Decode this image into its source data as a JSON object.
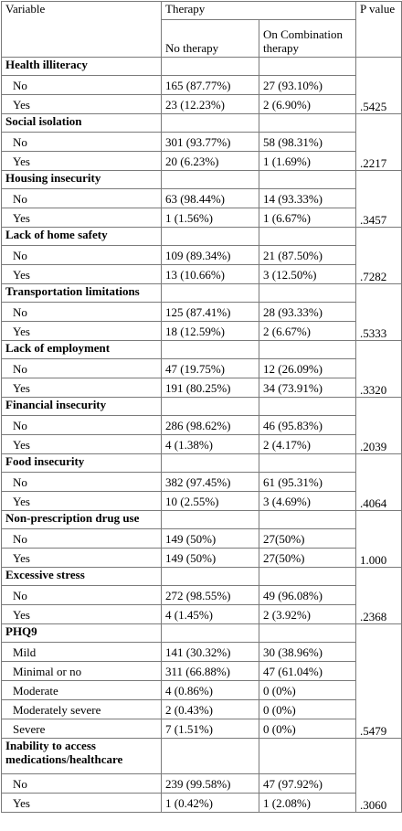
{
  "header": {
    "variable": "Variable",
    "therapy": "Therapy",
    "no_therapy": "No therapy",
    "combination": "On Combination therapy",
    "pvalue": "P value"
  },
  "sections": [
    {
      "title": "Health illiteracy",
      "rows": [
        {
          "level": "No",
          "no": "165 (87.77%)",
          "combo": "27 (93.10%)"
        },
        {
          "level": "Yes",
          "no": "23 (12.23%)",
          "combo": "2 (6.90%)"
        }
      ],
      "p": ".5425"
    },
    {
      "title": "Social isolation",
      "rows": [
        {
          "level": "No",
          "no": "301 (93.77%)",
          "combo": "58 (98.31%)"
        },
        {
          "level": "Yes",
          "no": "20 (6.23%)",
          "combo": "1 (1.69%)"
        }
      ],
      "p": ".2217"
    },
    {
      "title": "Housing insecurity",
      "rows": [
        {
          "level": "No",
          "no": "63 (98.44%)",
          "combo": "14 (93.33%)"
        },
        {
          "level": "Yes",
          "no": "1 (1.56%)",
          "combo": "1 (6.67%)"
        }
      ],
      "p": ".3457"
    },
    {
      "title": "Lack of home safety",
      "rows": [
        {
          "level": "No",
          "no": "109 (89.34%)",
          "combo": "21 (87.50%)"
        },
        {
          "level": "Yes",
          "no": "13 (10.66%)",
          "combo": "3 (12.50%)"
        }
      ],
      "p": ".7282"
    },
    {
      "title": "Transportation limitations",
      "rows": [
        {
          "level": "No",
          "no": "125 (87.41%)",
          "combo": "28 (93.33%)"
        },
        {
          "level": "Yes",
          "no": "18 (12.59%)",
          "combo": "2 (6.67%)"
        }
      ],
      "p": ".5333"
    },
    {
      "title": "Lack of employment",
      "rows": [
        {
          "level": "No",
          "no": "47 (19.75%)",
          "combo": "12 (26.09%)"
        },
        {
          "level": "Yes",
          "no": "191 (80.25%)",
          "combo": "34 (73.91%)"
        }
      ],
      "p": ".3320"
    },
    {
      "title": "Financial insecurity",
      "rows": [
        {
          "level": "No",
          "no": "286 (98.62%)",
          "combo": "46 (95.83%)"
        },
        {
          "level": "Yes",
          "no": "4 (1.38%)",
          "combo": "2 (4.17%)"
        }
      ],
      "p": ".2039"
    },
    {
      "title": "Food insecurity",
      "rows": [
        {
          "level": "No",
          "no": "382 (97.45%)",
          "combo": "61 (95.31%)"
        },
        {
          "level": "Yes",
          "no": "10 (2.55%)",
          "combo": "3 (4.69%)"
        }
      ],
      "p": ".4064"
    },
    {
      "title": "Non-prescription drug use",
      "rows": [
        {
          "level": "No",
          "no": "149 (50%)",
          "combo": "27(50%)"
        },
        {
          "level": "Yes",
          "no": "149 (50%)",
          "combo": "27(50%)"
        }
      ],
      "p": "1.000"
    },
    {
      "title": "Excessive stress",
      "rows": [
        {
          "level": "No",
          "no": "272 (98.55%)",
          "combo": "49 (96.08%)"
        },
        {
          "level": "Yes",
          "no": "4 (1.45%)",
          "combo": "2 (3.92%)"
        }
      ],
      "p": ".2368"
    },
    {
      "title": "PHQ9",
      "rows": [
        {
          "level": "Mild",
          "no": "141 (30.32%)",
          "combo": "30 (38.96%)"
        },
        {
          "level": "Minimal or no",
          "no": "311 (66.88%)",
          "combo": "47 (61.04%)"
        },
        {
          "level": "Moderate",
          "no": "4 (0.86%)",
          "combo": "0 (0%)"
        },
        {
          "level": "Moderately severe",
          "no": "2 (0.43%)",
          "combo": "0 (0%)"
        },
        {
          "level": "Severe",
          "no": "7 (1.51%)",
          "combo": "0 (0%)"
        }
      ],
      "p": ".5479"
    },
    {
      "title": "Inability to access medications/healthcare",
      "rows": [
        {
          "level": "No",
          "no": "239 (99.58%)",
          "combo": "47 (97.92%)"
        },
        {
          "level": "Yes",
          "no": "1 (0.42%)",
          "combo": "1 (2.08%)"
        }
      ],
      "p": ".3060"
    }
  ]
}
